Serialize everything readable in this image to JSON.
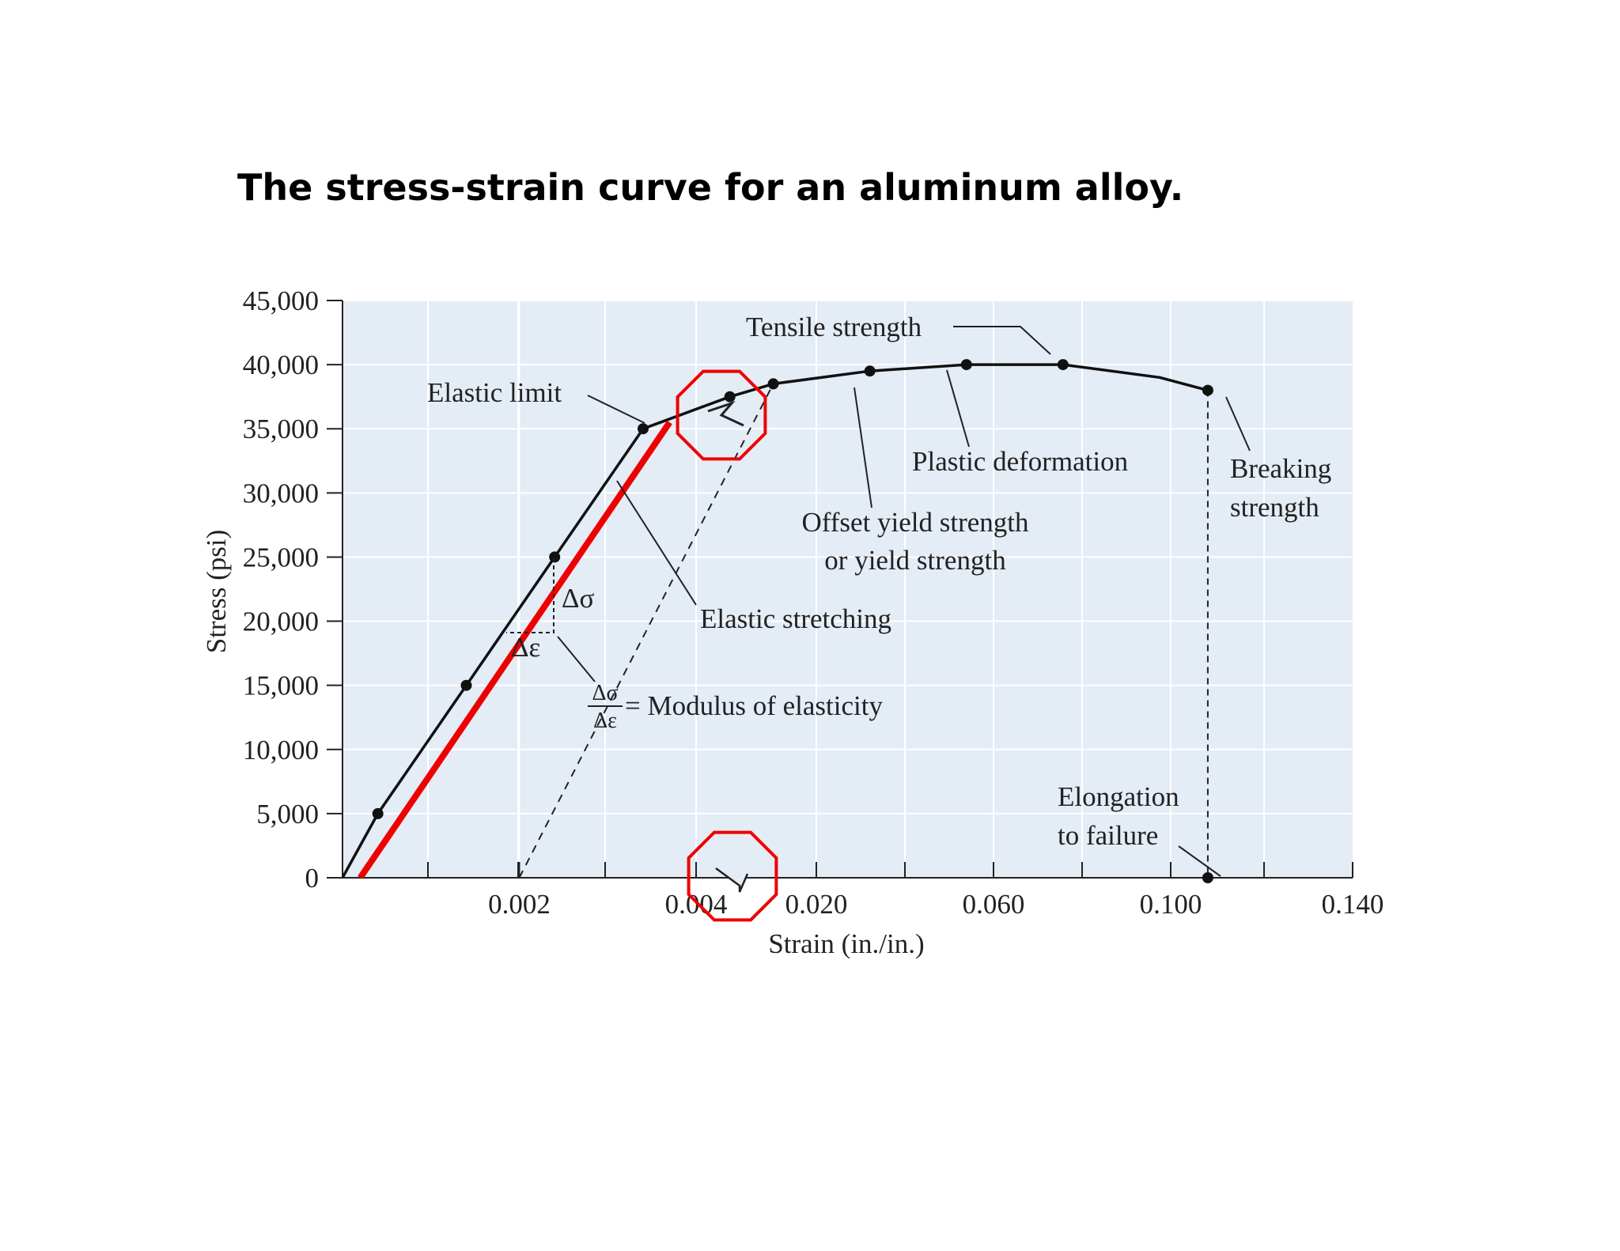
{
  "page": {
    "title": "The stress-strain curve for an aluminum alloy."
  },
  "chart_data": {
    "type": "line",
    "xlabel": "Strain (in./in.)",
    "ylabel": "Stress (psi)",
    "ylim": [
      0,
      45000
    ],
    "y_ticks": [
      "0",
      "5,000",
      "10,000",
      "15,000",
      "20,000",
      "25,000",
      "30,000",
      "35,000",
      "40,000",
      "45,000"
    ],
    "x_ticks": [
      "0.002",
      "0.004",
      "0.020",
      "0.060",
      "0.100",
      "0.140"
    ],
    "x_axis_note": "axis is broken between 0.004 and 0.020; segment 0–0.004 is expanded",
    "series": [
      {
        "points": [
          [
            0,
            0
          ],
          [
            0.0004,
            5000
          ],
          [
            0.0014,
            15000
          ],
          [
            0.0024,
            25000
          ],
          [
            0.0034,
            35000
          ],
          [
            0.011,
            37500
          ],
          [
            0.02,
            38500
          ],
          [
            0.04,
            39500
          ],
          [
            0.06,
            40000
          ],
          [
            0.08,
            40000
          ],
          [
            0.1,
            39000
          ],
          [
            0.11,
            38000
          ]
        ],
        "markers": [
          [
            0.0004,
            5000
          ],
          [
            0.0014,
            15000
          ],
          [
            0.0024,
            25000
          ],
          [
            0.0034,
            35000
          ],
          [
            0.011,
            37500
          ],
          [
            0.02,
            38500
          ],
          [
            0.04,
            39500
          ],
          [
            0.06,
            40000
          ],
          [
            0.08,
            40000
          ],
          [
            0.11,
            38000
          ],
          [
            0.11,
            0
          ]
        ],
        "color": "#111111"
      },
      {
        "points": [
          [
            0.0002,
            0
          ],
          [
            0.0037,
            35500
          ]
        ],
        "color": "#ee0000"
      },
      {
        "points": [
          [
            0.002,
            0
          ],
          [
            0.02,
            38500
          ]
        ],
        "style": "dashed",
        "color": "#222222"
      }
    ],
    "delta_sigma_symbol": "Δσ",
    "delta_epsilon_symbol": "Δε",
    "annotations": {
      "tensile_strength": "Tensile strength",
      "elastic_limit": "Elastic limit",
      "plastic_deformation": "Plastic deformation",
      "breaking_strength_line1": "Breaking",
      "breaking_strength_line2": "strength",
      "offset_yield_line1": "Offset yield strength",
      "offset_yield_line2": "or yield strength",
      "elastic_stretching": "Elastic stretching",
      "modulus": "= Modulus of elasticity",
      "elongation_line1": "Elongation",
      "elongation_line2": "to failure"
    },
    "highlight_color": "#ee0000",
    "plot_background": "#e4ecf6"
  }
}
